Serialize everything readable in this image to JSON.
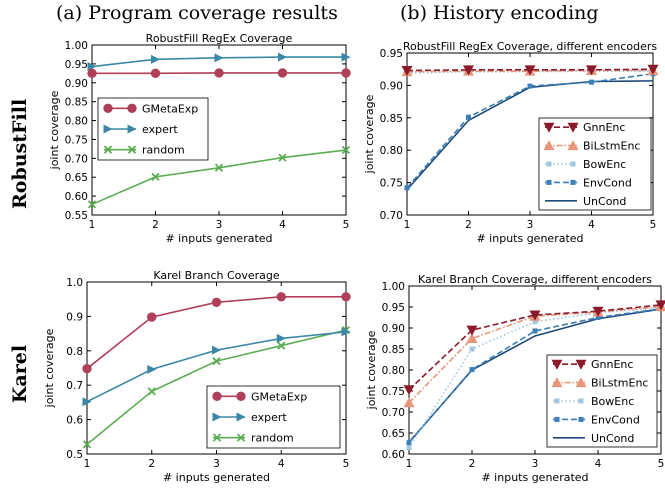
{
  "figure": {
    "col_titles": [
      "(a) Program coverage results",
      "(b) History encoding"
    ],
    "row_labels": [
      "RobustFill",
      "Karel"
    ]
  },
  "chart_data": [
    {
      "type": "line",
      "title": "RobustFill RegEx Coverage",
      "xlabel": "# inputs generated",
      "ylabel": "joint coverage",
      "x": [
        1,
        2,
        3,
        4,
        5
      ],
      "xlim": [
        1,
        5
      ],
      "ylim": [
        0.55,
        1.0
      ],
      "yticks": [
        0.55,
        0.6,
        0.65,
        0.7,
        0.75,
        0.8,
        0.85,
        0.9,
        0.95,
        1.0
      ],
      "ytick_labels": [
        "0.55",
        "0.60",
        "0.65",
        "0.70",
        "0.75",
        "0.80",
        "0.85",
        "0.90",
        "0.95",
        "1.00"
      ],
      "legend_position": "center-left",
      "series": [
        {
          "name": "GMetaExp",
          "color": "#b0405a",
          "marker": "circle",
          "dash": "solid",
          "values": [
            0.925,
            0.925,
            0.926,
            0.926,
            0.926
          ]
        },
        {
          "name": "expert",
          "color": "#3a87a8",
          "marker": "triangle-right",
          "dash": "solid",
          "values": [
            0.943,
            0.962,
            0.966,
            0.968,
            0.968
          ]
        },
        {
          "name": "random",
          "color": "#5aad50",
          "marker": "x",
          "dash": "solid",
          "values": [
            0.578,
            0.651,
            0.675,
            0.702,
            0.722
          ]
        }
      ]
    },
    {
      "type": "line",
      "title": "RobustFill RegEx Coverage, different encoders",
      "xlabel": "# inputs generated",
      "ylabel": "joint coverage",
      "x": [
        1,
        2,
        3,
        4,
        5
      ],
      "xlim": [
        1,
        5
      ],
      "ylim": [
        0.7,
        0.95
      ],
      "yticks": [
        0.7,
        0.75,
        0.8,
        0.85,
        0.9,
        0.95
      ],
      "ytick_labels": [
        "0.70",
        "0.75",
        "0.80",
        "0.85",
        "0.90",
        "0.95"
      ],
      "legend_position": "lower-right",
      "series": [
        {
          "name": "GnnEnc",
          "color": "#8b1a2b",
          "marker": "triangle-down",
          "dash": "dashed",
          "values": [
            0.923,
            0.924,
            0.924,
            0.924,
            0.925
          ]
        },
        {
          "name": "BiLstmEnc",
          "color": "#e8967a",
          "marker": "triangle-up",
          "dash": "dashdot",
          "values": [
            0.921,
            0.922,
            0.922,
            0.923,
            0.923
          ]
        },
        {
          "name": "BowEnc",
          "color": "#9fc6e2",
          "marker": "square",
          "dash": "dotted",
          "values": [
            0.919,
            0.921,
            0.921,
            0.922,
            0.922
          ]
        },
        {
          "name": "EnvCond",
          "color": "#3a7fb8",
          "marker": "square",
          "dash": "dashed",
          "values": [
            0.742,
            0.851,
            0.899,
            0.905,
            0.918
          ]
        },
        {
          "name": "UnCond",
          "color": "#1f4a78",
          "marker": "none",
          "dash": "solid",
          "values": [
            0.739,
            0.846,
            0.897,
            0.906,
            0.907
          ]
        }
      ]
    },
    {
      "type": "line",
      "title": "Karel Branch Coverage",
      "xlabel": "# inputs generated",
      "ylabel": "joint coverage",
      "x": [
        1,
        2,
        3,
        4,
        5
      ],
      "xlim": [
        1,
        5
      ],
      "ylim": [
        0.5,
        1.0
      ],
      "yticks": [
        0.5,
        0.6,
        0.7,
        0.8,
        0.9,
        1.0
      ],
      "ytick_labels": [
        "0.5",
        "0.6",
        "0.7",
        "0.8",
        "0.9",
        "1.0"
      ],
      "legend_position": "lower-right",
      "series": [
        {
          "name": "GMetaExp",
          "color": "#b0405a",
          "marker": "circle",
          "dash": "solid",
          "values": [
            0.748,
            0.898,
            0.941,
            0.957,
            0.957
          ]
        },
        {
          "name": "expert",
          "color": "#3a87a8",
          "marker": "triangle-right",
          "dash": "solid",
          "values": [
            0.652,
            0.746,
            0.802,
            0.836,
            0.855
          ]
        },
        {
          "name": "random",
          "color": "#5aad50",
          "marker": "x",
          "dash": "solid",
          "values": [
            0.528,
            0.682,
            0.77,
            0.815,
            0.86
          ]
        }
      ]
    },
    {
      "type": "line",
      "title": "Karel Branch Coverage, different encoders",
      "xlabel": "# inputs generated",
      "ylabel": "joint coverage",
      "x": [
        1,
        2,
        3,
        4,
        5
      ],
      "xlim": [
        1,
        5
      ],
      "ylim": [
        0.6,
        1.0
      ],
      "yticks": [
        0.6,
        0.65,
        0.7,
        0.75,
        0.8,
        0.85,
        0.9,
        0.95,
        1.0
      ],
      "ytick_labels": [
        "0.60",
        "0.65",
        "0.70",
        "0.75",
        "0.80",
        "0.85",
        "0.90",
        "0.95",
        "1.00"
      ],
      "legend_position": "lower-right",
      "series": [
        {
          "name": "GnnEnc",
          "color": "#8b1a2b",
          "marker": "triangle-down",
          "dash": "dashed",
          "values": [
            0.753,
            0.895,
            0.931,
            0.94,
            0.955
          ]
        },
        {
          "name": "BiLstmEnc",
          "color": "#e8967a",
          "marker": "triangle-up",
          "dash": "dashdot",
          "values": [
            0.722,
            0.875,
            0.928,
            0.938,
            0.951
          ]
        },
        {
          "name": "BowEnc",
          "color": "#9fc6e2",
          "marker": "square",
          "dash": "dotted",
          "values": [
            0.615,
            0.85,
            0.915,
            0.936,
            0.948
          ]
        },
        {
          "name": "EnvCond",
          "color": "#3a7fb8",
          "marker": "square",
          "dash": "dashed",
          "values": [
            0.627,
            0.801,
            0.893,
            0.925,
            0.946
          ]
        },
        {
          "name": "UnCond",
          "color": "#1f4a78",
          "marker": "none",
          "dash": "solid",
          "values": [
            0.628,
            0.8,
            0.881,
            0.922,
            0.945
          ]
        }
      ]
    }
  ]
}
